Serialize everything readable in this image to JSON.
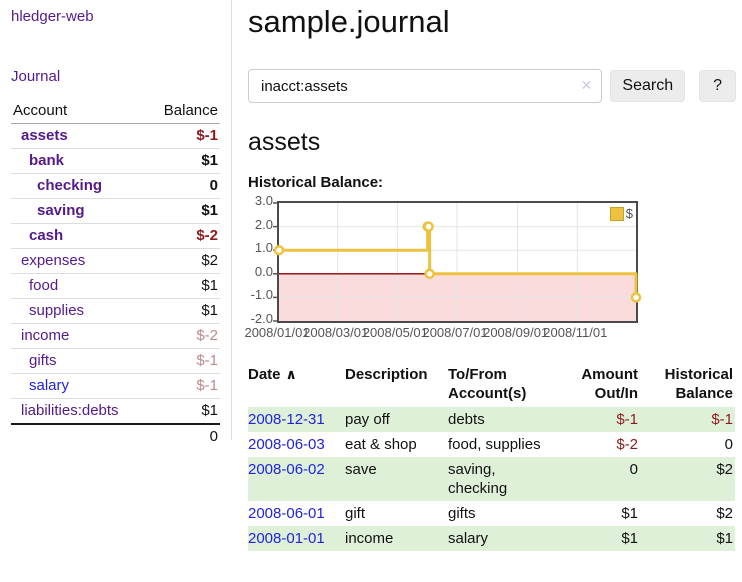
{
  "app": {
    "brand": "hledger-web",
    "nav_journal": "Journal"
  },
  "sidebar": {
    "account_header": "Account",
    "balance_header": "Balance",
    "accounts": [
      {
        "name": "assets",
        "indent": 1,
        "bold": true,
        "balance": "$-1",
        "tone": "neg-strong"
      },
      {
        "name": "bank",
        "indent": 2,
        "bold": true,
        "balance": "$1",
        "tone": "normal"
      },
      {
        "name": "checking",
        "indent": 3,
        "bold": true,
        "balance": "0",
        "tone": "normal"
      },
      {
        "name": "saving",
        "indent": 3,
        "bold": true,
        "balance": "$1",
        "tone": "normal"
      },
      {
        "name": "cash",
        "indent": 2,
        "bold": true,
        "balance": "$-2",
        "tone": "neg-strong"
      },
      {
        "name": "expenses",
        "indent": 1,
        "bold": false,
        "balance": "$2",
        "tone": "normal"
      },
      {
        "name": "food",
        "indent": 2,
        "bold": false,
        "balance": "$1",
        "tone": "normal"
      },
      {
        "name": "supplies",
        "indent": 2,
        "bold": false,
        "balance": "$1",
        "tone": "normal"
      },
      {
        "name": "income",
        "indent": 1,
        "bold": false,
        "balance": "$-2",
        "tone": "neg-soft"
      },
      {
        "name": "gifts",
        "indent": 2,
        "bold": false,
        "balance": "$-1",
        "tone": "neg-soft"
      },
      {
        "name": "salary",
        "indent": 2,
        "bold": false,
        "balance": "$-1",
        "tone": "neg-soft",
        "link": "blue"
      },
      {
        "name": "liabilities:debts",
        "indent": 1,
        "bold": false,
        "balance": "$1",
        "tone": "normal"
      }
    ],
    "total": "0"
  },
  "main": {
    "title": "sample.journal",
    "account_heading": "assets",
    "chart_label": "Historical Balance:"
  },
  "search": {
    "value": "inacct:assets",
    "clear_icon": "✕",
    "search_button": "Search",
    "help_button": "?"
  },
  "chart_data": {
    "type": "line",
    "step": true,
    "title": "Historical Balance:",
    "x_range": [
      "2008-01-01",
      "2008-12-31"
    ],
    "ylim": [
      -2,
      3
    ],
    "y_ticks": [
      3,
      2,
      1,
      0,
      -1,
      -2
    ],
    "x_ticks": [
      {
        "date": "2008-01-01",
        "label": "2008/01/01"
      },
      {
        "date": "2008-03-01",
        "label": "2008/03/01"
      },
      {
        "date": "2008-05-01",
        "label": "2008/05/01"
      },
      {
        "date": "2008-07-01",
        "label": "2008/07/01"
      },
      {
        "date": "2008-09-01",
        "label": "2008/09/01"
      },
      {
        "date": "2008-11-01",
        "label": "2008/11/01"
      }
    ],
    "series": [
      {
        "name": "$",
        "color": "#edc240",
        "points": [
          {
            "x": "2008-01-01",
            "y": 1
          },
          {
            "x": "2008-06-01",
            "y": 2
          },
          {
            "x": "2008-06-02",
            "y": 2
          },
          {
            "x": "2008-06-03",
            "y": 0
          },
          {
            "x": "2008-12-31",
            "y": -1
          }
        ]
      }
    ],
    "legend": {
      "label": "$",
      "position": "top-right"
    },
    "grid": true,
    "colors": {
      "grid": "#e5e5e5",
      "border": "#4a4a4a",
      "tick_text": "#545454",
      "zero_line": "#8b0000",
      "negative_region": "#fbdcdc"
    }
  },
  "register": {
    "headers": {
      "date": "Date",
      "description": "Description",
      "accounts": "To/From Account(s)",
      "amount": "Amount Out/In",
      "balance": "Historical Balance"
    },
    "sort_icon": "∧",
    "rows": [
      {
        "date": "2008-12-31",
        "description": "pay off",
        "accounts": "debts",
        "amount": "$-1",
        "amount_neg": true,
        "balance": "$-1",
        "balance_neg": true
      },
      {
        "date": "2008-06-03",
        "description": "eat & shop",
        "accounts": "food, supplies",
        "amount": "$-2",
        "amount_neg": true,
        "balance": "0",
        "balance_neg": false
      },
      {
        "date": "2008-06-02",
        "description": "save",
        "accounts": "saving, checking",
        "amount": "0",
        "amount_neg": false,
        "balance": "$2",
        "balance_neg": false
      },
      {
        "date": "2008-06-01",
        "description": "gift",
        "accounts": "gifts",
        "amount": "$1",
        "amount_neg": false,
        "balance": "$2",
        "balance_neg": false
      },
      {
        "date": "2008-01-01",
        "description": "income",
        "accounts": "salary",
        "amount": "$1",
        "amount_neg": false,
        "balance": "$1",
        "balance_neg": false
      }
    ]
  },
  "colors": {
    "purple_link": "#551a8b",
    "blue_link": "#2222dd",
    "neg_strong": "#8e1b1b",
    "neg_soft": "#bd8a8a",
    "stripe_green": "#dff0d8",
    "gold": "#edc240"
  }
}
